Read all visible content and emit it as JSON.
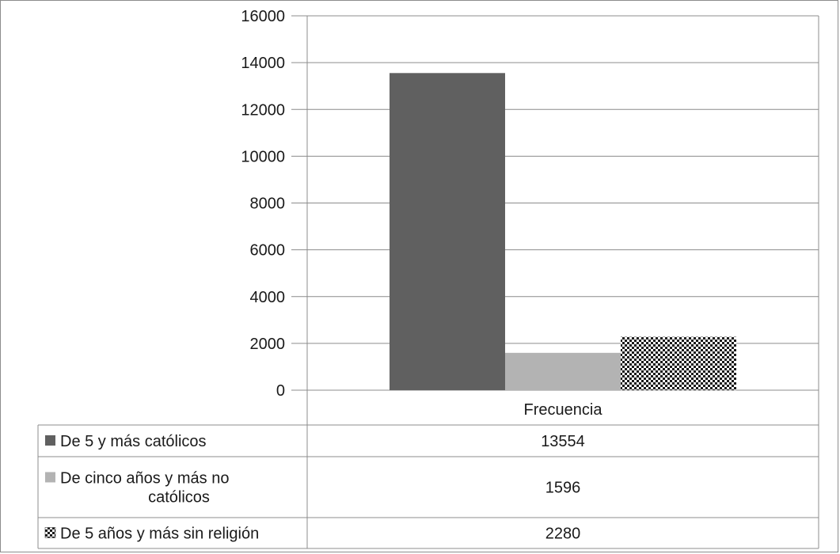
{
  "chart_data": {
    "type": "bar",
    "categories": [
      "Frecuencia"
    ],
    "series": [
      {
        "name": "De 5 y más católicos",
        "values": [
          13554
        ],
        "color": "#606060",
        "pattern": "solid"
      },
      {
        "name": "De cinco años y más no católicos",
        "values": [
          1596
        ],
        "color": "#b3b3b3",
        "pattern": "solid"
      },
      {
        "name": "De 5 años y más sin religión",
        "values": [
          2280
        ],
        "color": "#1a1a1a",
        "pattern": "checker"
      }
    ],
    "ylim": [
      0,
      16000
    ],
    "yticks": [
      "16000",
      "14000",
      "12000",
      "10000",
      "8000",
      "6000",
      "4000",
      "2000",
      "0"
    ],
    "data_table": {
      "header": "Frecuencia",
      "rows": [
        {
          "legend_lines": [
            "De 5 y más católicos"
          ],
          "value": "13554"
        },
        {
          "legend_lines": [
            "De cinco años y más no",
            "católicos"
          ],
          "value": "1596"
        },
        {
          "legend_lines": [
            "De 5 años y más sin religión"
          ],
          "value": "2280"
        }
      ]
    },
    "grid": true,
    "legend_placement": "data-table"
  }
}
